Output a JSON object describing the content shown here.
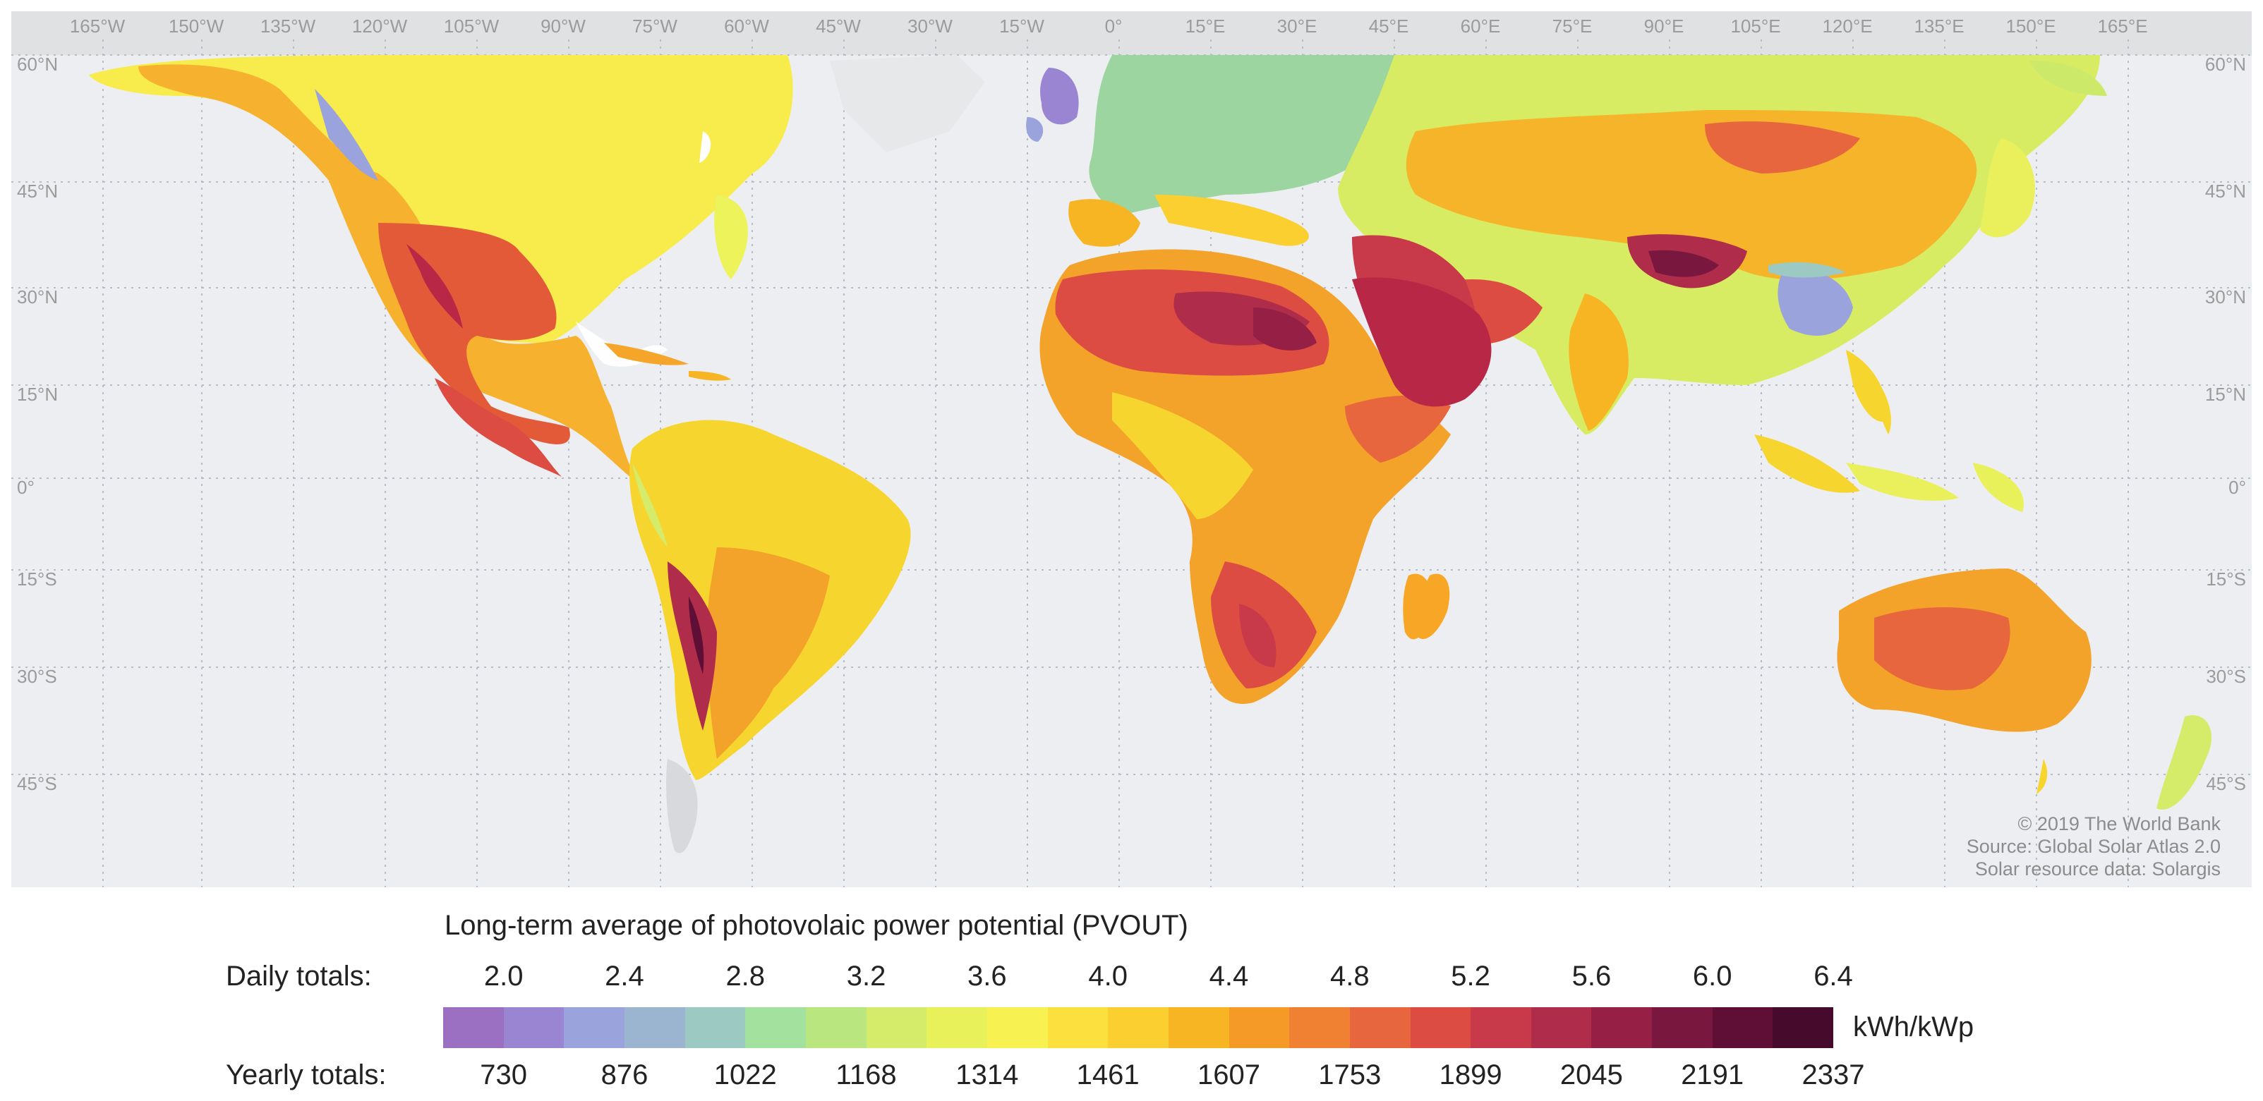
{
  "map": {
    "top_longitudes": [
      "165°W",
      "150°W",
      "135°W",
      "120°W",
      "105°W",
      "90°W",
      "75°W",
      "60°W",
      "45°W",
      "30°W",
      "15°W",
      "0°",
      "15°E",
      "30°E",
      "45°E",
      "60°E",
      "75°E",
      "90°E",
      "105°E",
      "120°E",
      "135°E",
      "150°E",
      "165°E"
    ],
    "latitudes": [
      "60°N",
      "45°N",
      "30°N",
      "15°N",
      "0°",
      "15°S",
      "30°S",
      "45°S"
    ],
    "credits": [
      "© 2019 The World Bank",
      "Source: Global Solar Atlas 2.0",
      "Solar resource data: Solargis"
    ]
  },
  "legend": {
    "title": "Long-term average of photovolaic power potential (PVOUT)",
    "daily_label": "Daily totals:",
    "daily_values": [
      "2.0",
      "2.4",
      "2.8",
      "3.2",
      "3.6",
      "4.0",
      "4.4",
      "4.8",
      "5.2",
      "5.6",
      "6.0",
      "6.4"
    ],
    "yearly_label": "Yearly totals:",
    "yearly_values": [
      "730",
      "876",
      "1022",
      "1168",
      "1314",
      "1461",
      "1607",
      "1753",
      "1899",
      "2045",
      "2191",
      "2337"
    ],
    "unit": "kWh/kWp",
    "colors": [
      "#9b6fc1",
      "#9a85d3",
      "#9aa3dc",
      "#9bb4d0",
      "#9cc9c2",
      "#a3e19e",
      "#b9e67f",
      "#d4ec6a",
      "#e8f05a",
      "#f7f152",
      "#fbe03e",
      "#fbcf2f",
      "#f7b423",
      "#f59a26",
      "#f08133",
      "#e7663e",
      "#dc4c43",
      "#c83a4a",
      "#b02c4b",
      "#951f45",
      "#7a173f",
      "#5f0f36",
      "#450a2c"
    ]
  }
}
